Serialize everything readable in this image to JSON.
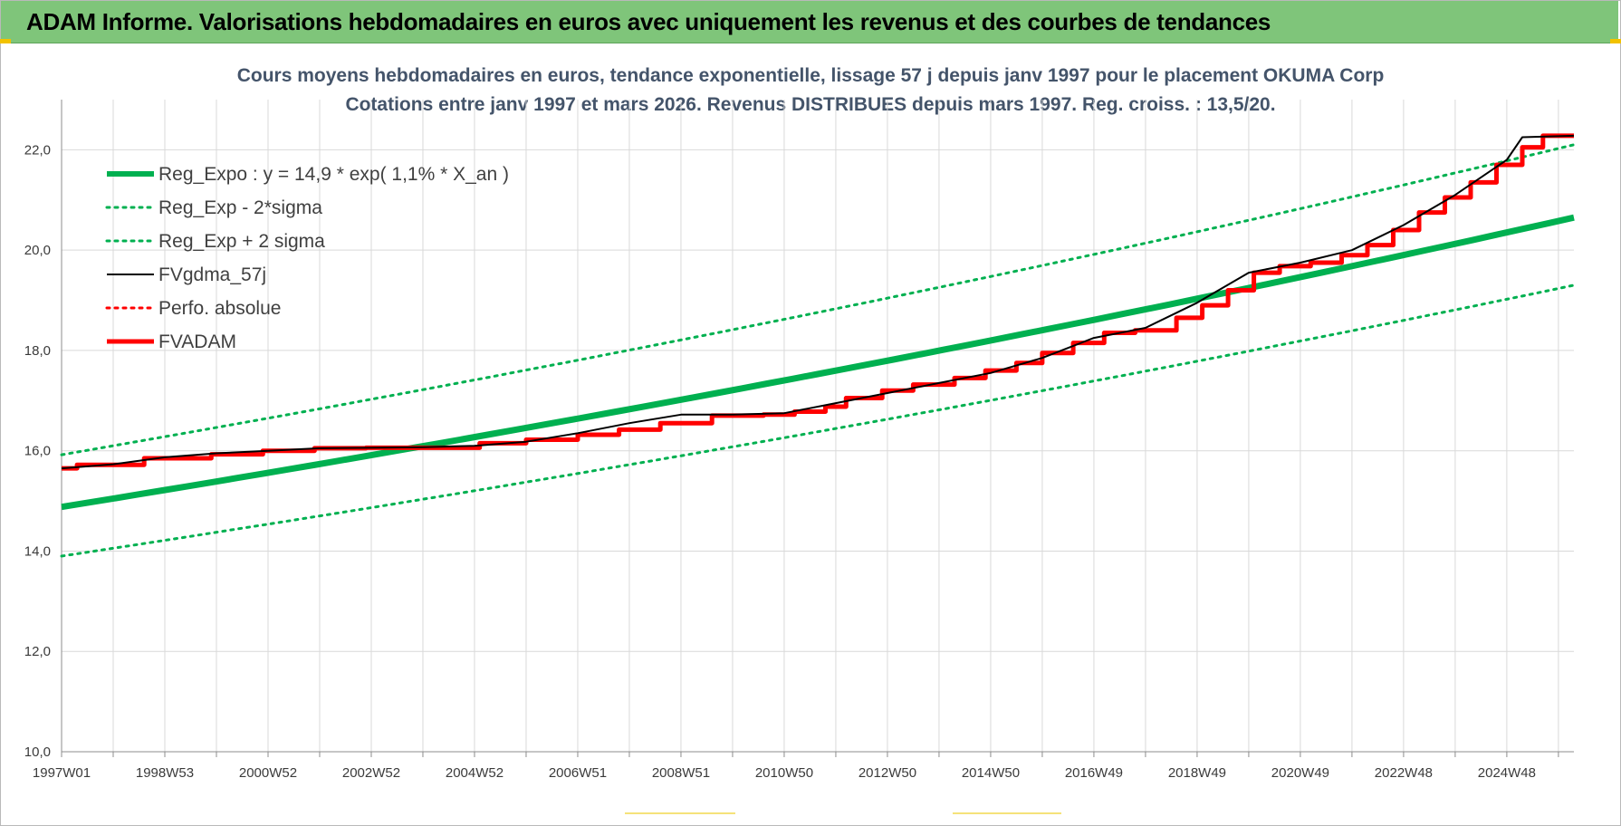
{
  "banner": {
    "title": "ADAM Informe. Valorisations hebdomadaires en euros avec uniquement les revenus et des courbes de tendances"
  },
  "colors": {
    "banner_bg": "#7fc57a",
    "reg_expo": "#00b050",
    "fvgdma": "#000000",
    "fvadam": "#ff0000",
    "title": "#44546a"
  },
  "chart_data": {
    "type": "line",
    "title": "Cours moyens hebdomadaires en euros, tendance exponentielle, lissage 57 j depuis janv 1997 pour le placement OKUMA Corp",
    "subtitle": "Cotations entre janv 1997 et mars 2026. Revenus DISTRIBUES depuis mars 1997. Reg. croiss. : 13,5/20.",
    "xlabel": "",
    "ylabel": "",
    "ylim": [
      10,
      23
    ],
    "xlim": [
      1997.0,
      2026.3
    ],
    "y_ticks": [
      "10,0",
      "12,0",
      "14,0",
      "16,0",
      "18,0",
      "20,0",
      "22,0"
    ],
    "y_tick_values": [
      10,
      12,
      14,
      16,
      18,
      20,
      22
    ],
    "x_ticks": [
      "1997W01",
      "1998W53",
      "2000W52",
      "2002W52",
      "2004W52",
      "2006W51",
      "2008W51",
      "2010W50",
      "2012W50",
      "2014W50",
      "2016W49",
      "2018W49",
      "2020W49",
      "2022W48",
      "2024W48"
    ],
    "x_tick_values": [
      1997.0,
      1999.0,
      2001.0,
      2003.0,
      2005.0,
      2007.0,
      2009.0,
      2011.0,
      2013.0,
      2015.0,
      2017.0,
      2019.0,
      2021.0,
      2023.0,
      2025.0
    ],
    "grid": true,
    "legend_position": "top-left",
    "series": [
      {
        "name": "Reg_Expo : y = 14,9 * exp( 1,1% *  X_an )",
        "style": "solid-thick",
        "color": "#00b050",
        "x": [
          1997.0,
          2026.3
        ],
        "y": [
          14.88,
          20.65
        ],
        "kind": "exp"
      },
      {
        "name": "Reg_Exp - 2*sigma",
        "style": "dotted",
        "color": "#00b050",
        "x": [
          1997.0,
          2026.3
        ],
        "y": [
          13.9,
          19.3
        ],
        "kind": "exp"
      },
      {
        "name": "Reg_Exp + 2 sigma",
        "style": "dotted",
        "color": "#00b050",
        "x": [
          1997.0,
          2026.3
        ],
        "y": [
          15.92,
          22.1
        ],
        "kind": "exp"
      },
      {
        "name": "FVgdma_57j",
        "style": "solid",
        "color": "#000000",
        "x": [
          1997.0,
          1998.0,
          1999.0,
          2000.0,
          2001.0,
          2002.0,
          2003.0,
          2004.0,
          2005.0,
          2006.0,
          2007.0,
          2008.0,
          2009.0,
          2010.0,
          2011.0,
          2012.0,
          2013.0,
          2014.0,
          2015.0,
          2016.0,
          2017.0,
          2018.0,
          2019.0,
          2020.0,
          2021.0,
          2022.0,
          2023.0,
          2024.0,
          2025.0,
          2025.3,
          2026.3
        ],
        "y": [
          15.65,
          15.73,
          15.87,
          15.95,
          16.0,
          16.05,
          16.06,
          16.07,
          16.1,
          16.18,
          16.35,
          16.55,
          16.72,
          16.72,
          16.75,
          16.95,
          17.15,
          17.35,
          17.55,
          17.85,
          18.25,
          18.45,
          18.95,
          19.55,
          19.75,
          20.0,
          20.5,
          21.1,
          21.8,
          22.25,
          22.28
        ]
      },
      {
        "name": "Perfo. absolue",
        "style": "dotted",
        "color": "#ff0000",
        "x": [],
        "y": []
      },
      {
        "name": "FVADAM",
        "style": "step-thick",
        "color": "#ff0000",
        "x": [
          1997.0,
          1997.3,
          1998.6,
          1999.9,
          2000.9,
          2001.9,
          2002.9,
          2005.1,
          2006.0,
          2007.0,
          2007.8,
          2008.6,
          2009.6,
          2010.6,
          2011.2,
          2011.8,
          2012.2,
          2012.9,
          2013.5,
          2014.3,
          2014.9,
          2015.5,
          2016.0,
          2016.6,
          2017.2,
          2017.8,
          2018.6,
          2019.1,
          2019.6,
          2020.1,
          2020.6,
          2021.2,
          2021.8,
          2022.3,
          2022.8,
          2023.3,
          2023.8,
          2024.3,
          2024.8,
          2025.3,
          2025.7,
          2026.3
        ],
        "y": [
          15.65,
          15.72,
          15.85,
          15.93,
          16.0,
          16.05,
          16.06,
          16.15,
          16.22,
          16.32,
          16.42,
          16.55,
          16.7,
          16.72,
          16.78,
          16.88,
          17.05,
          17.2,
          17.32,
          17.45,
          17.6,
          17.75,
          17.95,
          18.15,
          18.35,
          18.4,
          18.65,
          18.9,
          19.2,
          19.55,
          19.68,
          19.75,
          19.9,
          20.1,
          20.4,
          20.75,
          21.05,
          21.35,
          21.7,
          22.05,
          22.28,
          22.28
        ]
      }
    ]
  }
}
